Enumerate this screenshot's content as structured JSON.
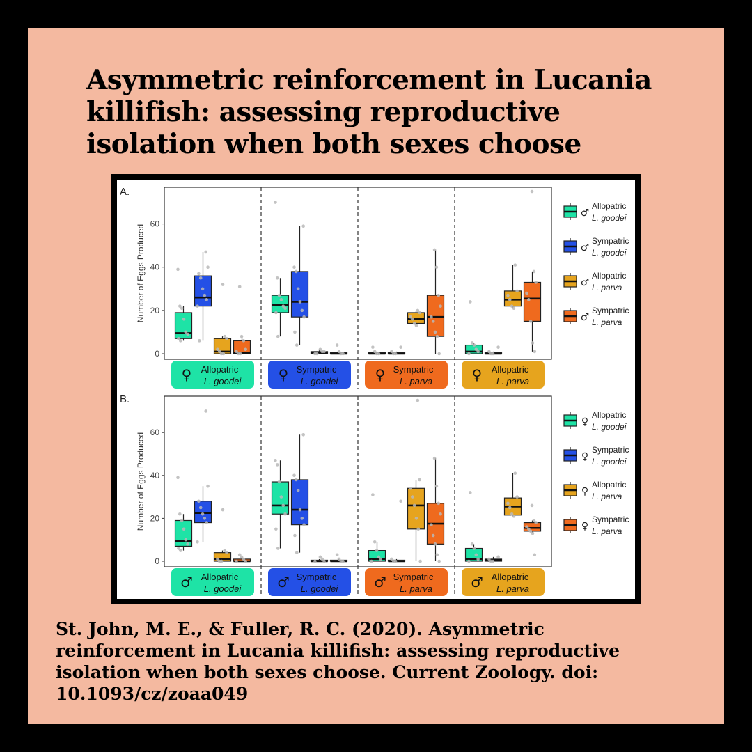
{
  "title": "Asymmetric reinforcement in Lucania killifish: assessing reproductive isolation when both sexes choose",
  "citation": {
    "lines": [
      "St. John, M. E., & Fuller, R. C. (2020). Asymmetric",
      "reinforcement in Lucania killifish: assessing reproductive",
      "isolation when both sexes choose. Current Zoology. doi:",
      "10.1093/cz/zoaa049"
    ]
  },
  "colors": {
    "allopatric_goodei": "#1ee3a6",
    "sympatric_goodei": "#2450e6",
    "allopatric_parva": "#e6a41e",
    "sympatric_parva": "#ef6a1e",
    "background_panel": "#f4b9a0"
  },
  "chart_data": [
    {
      "type": "box",
      "panel_label": "A.",
      "ylabel": "Number of Eggs Produced",
      "ylim": [
        0,
        75
      ],
      "yticks": [
        0,
        20,
        40,
        60
      ],
      "groups": [
        {
          "sex_symbol": "♀",
          "name1": "Allopatric",
          "name2": "L. goodei",
          "color": "#1ee3a6"
        },
        {
          "sex_symbol": "♀",
          "name1": "Sympatric",
          "name2": "L. goodei",
          "color": "#2450e6"
        },
        {
          "sex_symbol": "♀",
          "name1": "Sympatric",
          "name2": "L. parva",
          "color": "#ef6a1e"
        },
        {
          "sex_symbol": "♀",
          "name1": "Allopatric",
          "name2": "L. parva",
          "color": "#e6a41e"
        }
      ],
      "legend": [
        {
          "sex_symbol": "♂",
          "name1": "Allopatric",
          "name2": "L. goodei",
          "color": "#1ee3a6"
        },
        {
          "sex_symbol": "♂",
          "name1": "Sympatric",
          "name2": "L. goodei",
          "color": "#2450e6"
        },
        {
          "sex_symbol": "♂",
          "name1": "Allopatric",
          "name2": "L. parva",
          "color": "#e6a41e"
        },
        {
          "sex_symbol": "♂",
          "name1": "Sympatric",
          "name2": "L. parva",
          "color": "#ef6a1e"
        }
      ],
      "boxes": [
        {
          "group": 0,
          "series": 0,
          "min": 6,
          "q1": 7,
          "median": 9.5,
          "q3": 19,
          "max": 22,
          "points": [
            39,
            22,
            21,
            16,
            10,
            9,
            7,
            6
          ]
        },
        {
          "group": 0,
          "series": 1,
          "min": 6,
          "q1": 22,
          "median": 26,
          "q3": 36,
          "max": 47,
          "points": [
            47,
            40,
            37,
            35,
            30,
            27,
            25,
            22,
            6
          ]
        },
        {
          "group": 0,
          "series": 2,
          "min": 0,
          "q1": 0,
          "median": 1,
          "q3": 7,
          "max": 8,
          "points": [
            32,
            8,
            7,
            2,
            1,
            0,
            0
          ]
        },
        {
          "group": 0,
          "series": 3,
          "min": 0,
          "q1": 0,
          "median": 0.5,
          "q3": 6,
          "max": 8,
          "points": [
            31,
            8,
            6,
            2,
            1,
            0,
            0
          ]
        },
        {
          "group": 1,
          "series": 0,
          "min": 8,
          "q1": 19,
          "median": 22.5,
          "q3": 27,
          "max": 35,
          "points": [
            70,
            35,
            27,
            25,
            22,
            21,
            19,
            8
          ]
        },
        {
          "group": 1,
          "series": 1,
          "min": 4,
          "q1": 17,
          "median": 24,
          "q3": 38,
          "max": 59,
          "points": [
            59,
            40,
            38,
            30,
            24,
            20,
            17,
            10,
            4
          ]
        },
        {
          "group": 1,
          "series": 2,
          "min": 0,
          "q1": 0,
          "median": 0.5,
          "q3": 1,
          "max": 2,
          "points": [
            2,
            1,
            1,
            0,
            0
          ]
        },
        {
          "group": 1,
          "series": 3,
          "min": 0,
          "q1": 0,
          "median": 0,
          "q3": 0.5,
          "max": 1,
          "points": [
            4,
            1,
            0,
            0
          ]
        },
        {
          "group": 2,
          "series": 0,
          "min": 0,
          "q1": 0,
          "median": 0,
          "q3": 0.5,
          "max": 1,
          "points": [
            3,
            1,
            0,
            0
          ]
        },
        {
          "group": 2,
          "series": 1,
          "min": 0,
          "q1": 0,
          "median": 0,
          "q3": 0.5,
          "max": 1,
          "points": [
            3,
            1,
            0,
            0
          ]
        },
        {
          "group": 2,
          "series": 2,
          "min": 13,
          "q1": 14,
          "median": 16,
          "q3": 19,
          "max": 20,
          "points": [
            20,
            19,
            17,
            16,
            14,
            13
          ]
        },
        {
          "group": 2,
          "series": 3,
          "min": 0,
          "q1": 8,
          "median": 17,
          "q3": 27,
          "max": 48,
          "points": [
            48,
            40,
            27,
            22,
            17,
            15,
            10,
            8,
            0
          ]
        },
        {
          "group": 3,
          "series": 0,
          "min": 0,
          "q1": 0,
          "median": 1,
          "q3": 4,
          "max": 5,
          "points": [
            24,
            5,
            4,
            2,
            1,
            0
          ]
        },
        {
          "group": 3,
          "series": 1,
          "min": 0,
          "q1": 0,
          "median": 0,
          "q3": 0.5,
          "max": 1,
          "points": [
            3,
            1,
            0,
            0
          ]
        },
        {
          "group": 3,
          "series": 2,
          "min": 21,
          "q1": 22,
          "median": 25,
          "q3": 29,
          "max": 41,
          "points": [
            41,
            29,
            27,
            25,
            22,
            21
          ]
        },
        {
          "group": 3,
          "series": 3,
          "min": 1,
          "q1": 15,
          "median": 25.5,
          "q3": 33,
          "max": 38,
          "points": [
            75,
            38,
            33,
            28,
            25,
            15,
            5,
            1
          ]
        }
      ]
    },
    {
      "type": "box",
      "panel_label": "B.",
      "ylabel": "Number of Eggs Produced",
      "ylim": [
        0,
        75
      ],
      "yticks": [
        0,
        20,
        40,
        60
      ],
      "groups": [
        {
          "sex_symbol": "♂",
          "name1": "Allopatric",
          "name2": "L. goodei",
          "color": "#1ee3a6"
        },
        {
          "sex_symbol": "♂",
          "name1": "Sympatric",
          "name2": "L. goodei",
          "color": "#2450e6"
        },
        {
          "sex_symbol": "♂",
          "name1": "Sympatric",
          "name2": "L. parva",
          "color": "#ef6a1e"
        },
        {
          "sex_symbol": "♂",
          "name1": "Allopatric",
          "name2": "L. parva",
          "color": "#e6a41e"
        }
      ],
      "legend": [
        {
          "sex_symbol": "♀",
          "name1": "Allopatric",
          "name2": "L. goodei",
          "color": "#1ee3a6"
        },
        {
          "sex_symbol": "♀",
          "name1": "Sympatric",
          "name2": "L. goodei",
          "color": "#2450e6"
        },
        {
          "sex_symbol": "♀",
          "name1": "Allopatric",
          "name2": "L. parva",
          "color": "#e6a41e"
        },
        {
          "sex_symbol": "♀",
          "name1": "Sympatric",
          "name2": "L. parva",
          "color": "#ef6a1e"
        }
      ],
      "boxes": [
        {
          "group": 0,
          "series": 0,
          "min": 5,
          "q1": 7,
          "median": 9.5,
          "q3": 19,
          "max": 22,
          "points": [
            39,
            22,
            19,
            15,
            10,
            8,
            6,
            5
          ]
        },
        {
          "group": 0,
          "series": 1,
          "min": 9,
          "q1": 18,
          "median": 22.5,
          "q3": 28,
          "max": 35,
          "points": [
            70,
            35,
            28,
            25,
            22,
            20,
            18,
            9
          ]
        },
        {
          "group": 0,
          "series": 2,
          "min": 0,
          "q1": 0,
          "median": 1,
          "q3": 4,
          "max": 5,
          "points": [
            24,
            5,
            4,
            1,
            0,
            0
          ]
        },
        {
          "group": 0,
          "series": 3,
          "min": 0,
          "q1": 0,
          "median": 0,
          "q3": 1,
          "max": 2,
          "points": [
            3,
            2,
            1,
            0,
            0
          ]
        },
        {
          "group": 1,
          "series": 0,
          "min": 6,
          "q1": 22,
          "median": 26,
          "q3": 37,
          "max": 47,
          "points": [
            47,
            45,
            37,
            30,
            26,
            22,
            15,
            6
          ]
        },
        {
          "group": 1,
          "series": 1,
          "min": 4,
          "q1": 17,
          "median": 24,
          "q3": 38,
          "max": 59,
          "points": [
            59,
            40,
            38,
            33,
            24,
            20,
            17,
            12,
            4
          ]
        },
        {
          "group": 1,
          "series": 2,
          "min": 0,
          "q1": 0,
          "median": 0,
          "q3": 0.5,
          "max": 1,
          "points": [
            2,
            1,
            0,
            0
          ]
        },
        {
          "group": 1,
          "series": 3,
          "min": 0,
          "q1": 0,
          "median": 0,
          "q3": 0.5,
          "max": 1,
          "points": [
            3,
            1,
            0,
            0
          ]
        },
        {
          "group": 2,
          "series": 0,
          "min": 0,
          "q1": 0,
          "median": 1,
          "q3": 5,
          "max": 9,
          "points": [
            31,
            9,
            5,
            2,
            1,
            0
          ]
        },
        {
          "group": 2,
          "series": 1,
          "min": 0,
          "q1": 0,
          "median": 0,
          "q3": 0.5,
          "max": 1,
          "points": [
            28,
            1,
            0,
            0
          ]
        },
        {
          "group": 2,
          "series": 2,
          "min": 0,
          "q1": 15,
          "median": 26,
          "q3": 34,
          "max": 38,
          "points": [
            75,
            38,
            34,
            30,
            26,
            20,
            15,
            0
          ]
        },
        {
          "group": 2,
          "series": 3,
          "min": 0,
          "q1": 8,
          "median": 17.5,
          "q3": 27,
          "max": 48,
          "points": [
            48,
            35,
            27,
            22,
            17,
            12,
            8,
            3,
            0
          ]
        },
        {
          "group": 3,
          "series": 0,
          "min": 0,
          "q1": 0,
          "median": 1,
          "q3": 6,
          "max": 8,
          "points": [
            32,
            8,
            6,
            3,
            1,
            0
          ]
        },
        {
          "group": 3,
          "series": 1,
          "min": 0,
          "q1": 0,
          "median": 0.5,
          "q3": 1,
          "max": 2,
          "points": [
            2,
            1,
            0,
            0
          ]
        },
        {
          "group": 3,
          "series": 2,
          "min": 21,
          "q1": 21.5,
          "median": 25.5,
          "q3": 29.5,
          "max": 41,
          "points": [
            41,
            30,
            27,
            25,
            22,
            21
          ]
        },
        {
          "group": 3,
          "series": 3,
          "min": 13,
          "q1": 14,
          "median": 15.5,
          "q3": 18,
          "max": 19,
          "points": [
            26,
            19,
            18,
            16,
            15,
            14,
            13,
            3
          ]
        }
      ]
    }
  ]
}
